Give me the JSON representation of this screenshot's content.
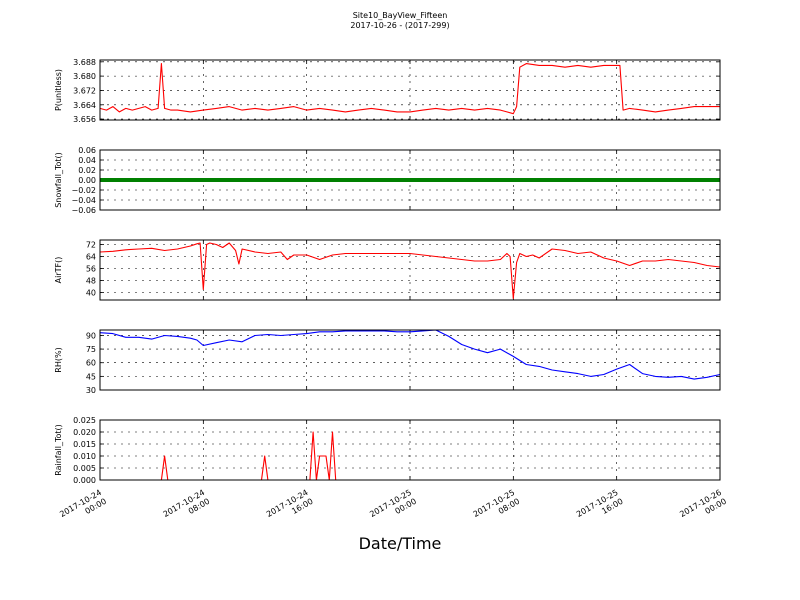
{
  "chart_data": {
    "type": "line",
    "title": "Site10_BayView_Fifteen",
    "subtitle": "2017-10-26 - (2017-299)",
    "xlabel": "Date/Time",
    "x_range": [
      "2017-10-24 00:00",
      "2017-10-26 00:00"
    ],
    "x_ticks": [
      {
        "label": "2017-10-24 00:00",
        "hours": 0
      },
      {
        "label": "2017-10-24 08:00",
        "hours": 8
      },
      {
        "label": "2017-10-24 16:00",
        "hours": 16
      },
      {
        "label": "2017-10-25 00:00",
        "hours": 24
      },
      {
        "label": "2017-10-25 08:00",
        "hours": 32
      },
      {
        "label": "2017-10-25 16:00",
        "hours": 40
      },
      {
        "label": "2017-10-26 00:00",
        "hours": 48
      }
    ],
    "grid": true,
    "panels": [
      {
        "ylabel": "P(unitless)",
        "color": "#ff0000",
        "ylim": [
          3.6555,
          3.689
        ],
        "yticks": [
          3.656,
          3.664,
          3.672,
          3.68,
          3.688
        ],
        "ytick_labels": [
          "3.656",
          "3.664",
          "3.672",
          "3.680",
          "3.688"
        ],
        "series": [
          {
            "x_hours": [
              0,
              0.5,
              1,
              1.5,
              2,
              2.5,
              3,
              3.5,
              4,
              4.5,
              4.75,
              5,
              5.5,
              6,
              7,
              8,
              9,
              10,
              11,
              12,
              13,
              14,
              15,
              16,
              17,
              18,
              19,
              20,
              21,
              22,
              23,
              24,
              25,
              26,
              27,
              28,
              29,
              30,
              31,
              31.5,
              32,
              32.25,
              32.5,
              33,
              34,
              35,
              36,
              37,
              38,
              39,
              40,
              40.25,
              40.5,
              41,
              42,
              43,
              44,
              45,
              46,
              47,
              48
            ],
            "y": [
              3.662,
              3.661,
              3.663,
              3.66,
              3.662,
              3.661,
              3.662,
              3.663,
              3.661,
              3.662,
              3.687,
              3.662,
              3.661,
              3.661,
              3.66,
              3.661,
              3.662,
              3.663,
              3.661,
              3.662,
              3.661,
              3.662,
              3.663,
              3.661,
              3.662,
              3.661,
              3.66,
              3.661,
              3.662,
              3.661,
              3.66,
              3.66,
              3.661,
              3.662,
              3.661,
              3.662,
              3.661,
              3.662,
              3.661,
              3.66,
              3.659,
              3.663,
              3.685,
              3.687,
              3.686,
              3.686,
              3.685,
              3.686,
              3.685,
              3.686,
              3.686,
              3.686,
              3.661,
              3.662,
              3.661,
              3.66,
              3.661,
              3.662,
              3.663,
              3.663,
              3.663
            ]
          }
        ]
      },
      {
        "ylabel": "Snowfall_Tot()",
        "color": "#008000",
        "ylim": [
          -0.06,
          0.06
        ],
        "yticks": [
          -0.06,
          -0.04,
          -0.02,
          0.0,
          0.02,
          0.04,
          0.06
        ],
        "ytick_labels": [
          "−0.06",
          "−0.04",
          "−0.02",
          "0.00",
          "0.02",
          "0.04",
          "0.06"
        ],
        "series": [
          {
            "x_hours": [
              0,
              48
            ],
            "y": [
              0,
              0
            ]
          }
        ]
      },
      {
        "ylabel": "AirTF()",
        "color": "#ff0000",
        "ylim": [
          35,
          75
        ],
        "yticks": [
          40,
          48,
          56,
          64,
          72
        ],
        "ytick_labels": [
          "40",
          "48",
          "56",
          "64",
          "72"
        ],
        "series": [
          {
            "x_hours": [
              0,
              1,
              2,
              3,
              4,
              5,
              6,
              7,
              7.5,
              7.75,
              8,
              8.25,
              8.5,
              9,
              9.5,
              10,
              10.5,
              10.75,
              11,
              12,
              13,
              14,
              14.5,
              15,
              16,
              17,
              18,
              19,
              20,
              21,
              22,
              23,
              24,
              25,
              26,
              27,
              28,
              29,
              30,
              31,
              31.5,
              31.75,
              32,
              32.25,
              32.5,
              33,
              33.5,
              34,
              35,
              36,
              37,
              38,
              39,
              39.5,
              40,
              41,
              42,
              43,
              44,
              45,
              46,
              47,
              48
            ],
            "y": [
              67,
              67.5,
              68.5,
              69,
              69.5,
              68,
              69,
              71,
              72.5,
              73,
              42,
              72,
              73,
              72,
              70,
              73,
              68,
              59,
              69,
              67,
              66,
              67,
              62,
              65,
              65,
              62,
              65,
              66,
              66,
              66,
              66,
              66,
              66,
              65,
              64,
              63,
              62,
              61,
              61,
              62,
              66,
              64,
              36,
              60,
              66,
              64,
              65,
              63,
              69,
              68,
              66,
              67,
              63,
              62,
              61,
              58,
              61,
              61,
              62,
              61,
              60,
              58,
              57
            ]
          }
        ]
      },
      {
        "ylabel": "RH(%)",
        "color": "#0000ff",
        "ylim": [
          30,
          96
        ],
        "yticks": [
          30,
          45,
          60,
          75,
          90
        ],
        "ytick_labels": [
          "30",
          "45",
          "60",
          "75",
          "90"
        ],
        "series": [
          {
            "x_hours": [
              0,
              1,
              2,
              3,
              4,
              5,
              6,
              7,
              7.5,
              8,
              9,
              10,
              11,
              12,
              13,
              14,
              15,
              16,
              17,
              18,
              19,
              20,
              21,
              22,
              23,
              24,
              25,
              26,
              27,
              28,
              29,
              30,
              31,
              32,
              33,
              34,
              35,
              36,
              37,
              38,
              39,
              40,
              41,
              42,
              43,
              44,
              45,
              46,
              47,
              48
            ],
            "y": [
              93,
              92,
              88,
              88,
              86,
              90,
              89,
              87,
              85,
              79,
              82,
              85,
              83,
              90,
              91,
              90,
              91,
              92,
              94,
              94,
              95,
              95,
              95,
              95,
              94,
              94,
              95,
              96,
              89,
              80,
              75,
              71,
              75,
              67,
              58,
              56,
              52,
              50,
              48,
              45,
              47,
              53,
              58,
              48,
              45,
              44,
              45,
              42,
              44,
              47
            ]
          }
        ]
      },
      {
        "ylabel": "Rainfall_Tot()",
        "color": "#ff0000",
        "ylim": [
          0,
          0.025
        ],
        "yticks": [
          0.0,
          0.005,
          0.01,
          0.015,
          0.02,
          0.025
        ],
        "ytick_labels": [
          "0.000",
          "0.005",
          "0.010",
          "0.015",
          "0.020",
          "0.025"
        ],
        "series": [
          {
            "x_hours": [
              0,
              4.75,
              5,
              5.25,
              12.5,
              12.75,
              13,
              16.25,
              16.5,
              16.75,
              17,
              17.25,
              17.5,
              17.75,
              18,
              18.25,
              18.5,
              48
            ],
            "y": [
              0,
              0,
              0.01,
              0,
              0,
              0.01,
              0,
              0,
              0.02,
              0,
              0.01,
              0.01,
              0.01,
              0,
              0.02,
              0,
              0,
              0
            ]
          }
        ]
      }
    ]
  }
}
